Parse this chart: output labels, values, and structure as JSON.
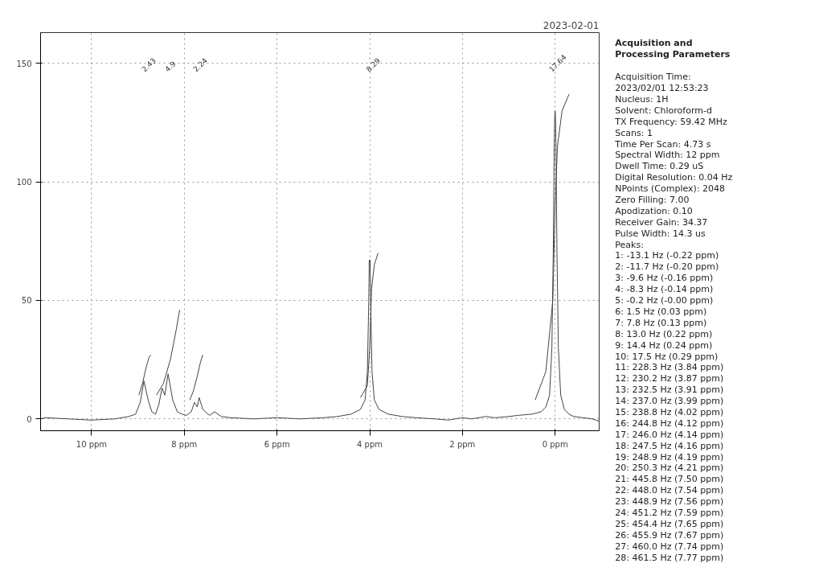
{
  "chart_data": [
    {
      "type": "line",
      "title": "2023-02-01",
      "xlim": [
        11.1,
        -0.95
      ],
      "ylim": [
        -5,
        163
      ],
      "xticks": [
        {
          "value": 10,
          "label": "10 ppm"
        },
        {
          "value": 8,
          "label": "8 ppm"
        },
        {
          "value": 6,
          "label": "6 ppm"
        },
        {
          "value": 4,
          "label": "4 ppm"
        },
        {
          "value": 2,
          "label": "2 ppm"
        },
        {
          "value": 0,
          "label": "0 ppm"
        }
      ],
      "yticks": [
        0,
        50,
        100,
        150
      ],
      "grid": true,
      "series": [
        {
          "color": "#444444",
          "x": [
            -0.95,
            -0.8,
            -0.6,
            -0.4,
            -0.3,
            -0.2,
            -0.12,
            -0.07,
            -0.04,
            -0.02,
            -0.01,
            0,
            0.01,
            0.02,
            0.04,
            0.07,
            0.12,
            0.2,
            0.3,
            0.5,
            0.8,
            1.0,
            1.3,
            1.5,
            1.8,
            2.0,
            2.3,
            2.6,
            3.0,
            3.3,
            3.6,
            3.8,
            3.9,
            3.95,
            3.98,
            3.99,
            4.0,
            4.01,
            4.02,
            4.05,
            4.1,
            4.2,
            4.4,
            4.7,
            5.0,
            5.5,
            6.0,
            6.5,
            7.0,
            7.2,
            7.35,
            7.45,
            7.55,
            7.6,
            7.68,
            7.72,
            7.78,
            7.85,
            7.95,
            8.05,
            8.15,
            8.25,
            8.35,
            8.42,
            8.48,
            8.55,
            8.62,
            8.7,
            8.78,
            8.87,
            8.95,
            9.05,
            9.2,
            9.5,
            10.0,
            10.5,
            11.0,
            11.1
          ],
          "values": [
            -1,
            0,
            0.5,
            1,
            2,
            4,
            10,
            30,
            70,
            110,
            126,
            130,
            127,
            115,
            70,
            30,
            10,
            5,
            3,
            2,
            1.5,
            1,
            0.5,
            1,
            0,
            0.5,
            -0.5,
            0,
            0.5,
            1,
            2,
            4,
            8,
            20,
            50,
            67,
            67,
            67,
            50,
            20,
            8,
            4,
            2,
            1,
            0.5,
            0,
            0.5,
            0,
            0.5,
            1,
            3,
            1.5,
            3,
            4,
            9,
            5,
            7,
            3,
            1.5,
            2,
            3,
            8,
            19,
            10,
            13,
            6,
            2,
            3,
            8,
            16,
            7,
            2,
            1,
            0,
            -0.5,
            0,
            0.5,
            0
          ]
        },
        {
          "color": "#444444",
          "x": [
            8.98,
            8.9,
            8.82,
            8.76,
            8.72
          ],
          "values": [
            10,
            15,
            22,
            26,
            27
          ]
        },
        {
          "color": "#444444",
          "x": [
            8.6,
            8.45,
            8.3,
            8.18,
            8.1
          ],
          "values": [
            10,
            15,
            25,
            37,
            46
          ]
        },
        {
          "color": "#444444",
          "x": [
            7.88,
            7.8,
            7.72,
            7.65,
            7.6
          ],
          "values": [
            8,
            12,
            18,
            24,
            27
          ]
        },
        {
          "color": "#444444",
          "x": [
            4.2,
            4.05,
            4.0,
            3.96,
            3.9,
            3.82
          ],
          "values": [
            9,
            14,
            30,
            55,
            65,
            70
          ]
        },
        {
          "color": "#444444",
          "x": [
            0.43,
            0.2,
            0.05,
            0,
            -0.05,
            -0.15,
            -0.3
          ],
          "values": [
            8,
            20,
            50,
            90,
            115,
            130,
            137
          ]
        }
      ],
      "annotations": [
        "2.43",
        "4.9",
        "2.24",
        "8.29",
        "17.64"
      ]
    },
    {
      "type": "other",
      "title": "Acquisition and Processing Parameters",
      "annotations": [
        "Acquisition Time:",
        " 2023/02/01 12:53:23",
        "Nucleus: 1H",
        "Solvent: Chloroform-d",
        "TX Frequency: 59.42 MHz",
        "Scans: 1",
        "Time Per Scan: 4.73 s",
        "Spectral Width: 12 ppm",
        "Dwell Time: 0.29 uS",
        "Digital Resolution: 0.04 Hz",
        "NPoints (Complex): 2048",
        "Zero Filling: 7.00",
        "Apodization: 0.10",
        "Receiver Gain: 34.37",
        "Pulse Width: 14.3 us",
        "Peaks:",
        " 1: -13.1 Hz (-0.22 ppm)",
        " 2: -11.7 Hz (-0.20 ppm)",
        " 3: -9.6 Hz (-0.16 ppm)",
        " 4: -8.3 Hz (-0.14 ppm)",
        " 5: -0.2 Hz (-0.00 ppm)",
        " 6: 1.5 Hz (0.03 ppm)",
        " 7: 7.8 Hz (0.13 ppm)",
        " 8: 13.0 Hz (0.22 ppm)",
        " 9: 14.4 Hz (0.24 ppm)",
        " 10: 17.5 Hz (0.29 ppm)",
        " 11: 228.3 Hz (3.84 ppm)",
        " 12: 230.2 Hz (3.87 ppm)",
        " 13: 232.5 Hz (3.91 ppm)",
        " 14: 237.0 Hz (3.99 ppm)",
        " 15: 238.8 Hz (4.02 ppm)",
        " 16: 244.8 Hz (4.12 ppm)",
        " 17: 246.0 Hz (4.14 ppm)",
        " 18: 247.5 Hz (4.16 ppm)",
        " 19: 248.9 Hz (4.19 ppm)",
        " 20: 250.3 Hz (4.21 ppm)",
        " 21: 445.8 Hz (7.50 ppm)",
        " 22: 448.0 Hz (7.54 ppm)",
        " 23: 448.9 Hz (7.56 ppm)",
        " 24: 451.2 Hz (7.59 ppm)",
        " 25: 454.4 Hz (7.65 ppm)",
        " 26: 455.9 Hz (7.67 ppm)",
        " 27: 460.0 Hz (7.74 ppm)",
        " 28: 461.5 Hz (7.77 ppm)"
      ]
    }
  ]
}
